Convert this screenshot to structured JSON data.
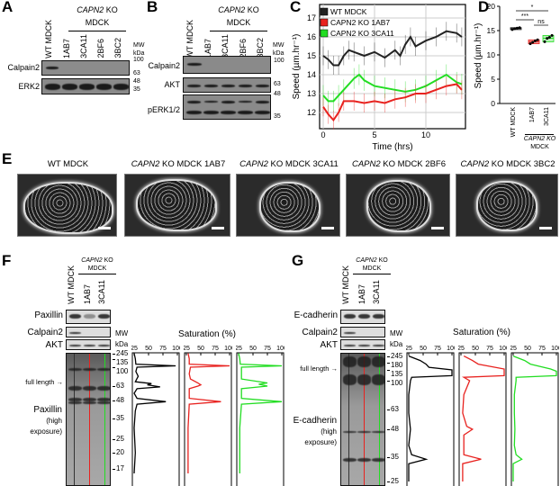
{
  "panel_labels": {
    "a": "A",
    "b": "B",
    "c": "C",
    "d": "D",
    "e": "E",
    "f": "F",
    "g": "G"
  },
  "common": {
    "ko_gene": "CAPN2",
    "ko": " KO",
    "mdck": "MDCK",
    "wt": "WT MDCK",
    "mw": "MW",
    "kda": "kDa"
  },
  "panel_a": {
    "lanes": [
      "WT MDCK",
      "1AB7",
      "3CA11",
      "2BF6",
      "3BC2"
    ],
    "blots": [
      "Calpain2",
      "ERK2"
    ],
    "mw_marks": [
      "100",
      "63",
      "48",
      "35"
    ]
  },
  "panel_b": {
    "lanes": [
      "WT MDCK",
      "1AB7",
      "3CA11",
      "2BF6",
      "3BC2"
    ],
    "blots": [
      "Calpain2",
      "AKT",
      "pERK1/2"
    ],
    "mw_marks": [
      "100",
      "63",
      "48",
      "35"
    ]
  },
  "chart_data": [
    {
      "panel": "C",
      "type": "line",
      "xlabel": "Time (hrs)",
      "ylabel": "Speed (µm.hr⁻¹)",
      "xlim": [
        0,
        13.8
      ],
      "ylim": [
        11.1,
        17.7
      ],
      "xticks": [
        "0",
        "5",
        "10"
      ],
      "yticks": [
        "12",
        "13",
        "14",
        "15",
        "16",
        "17"
      ],
      "grid": true,
      "legend": "top-left",
      "series": [
        {
          "name": "WT MDCK",
          "color": "#222222",
          "error": 0.5,
          "x": [
            0,
            0.5,
            1,
            1.5,
            2,
            2.5,
            3,
            4,
            5,
            6,
            7,
            7.5,
            8,
            8.5,
            9,
            10,
            11,
            12,
            13,
            13.5
          ],
          "y": [
            15.0,
            14.8,
            14.5,
            14.5,
            15.0,
            15.3,
            15.2,
            15.0,
            15.2,
            14.9,
            15.3,
            15.0,
            15.6,
            16.0,
            15.5,
            15.8,
            16.0,
            16.3,
            16.2,
            16.0
          ]
        },
        {
          "name": "CAPN2 KO 1AB7",
          "color": "#e8221f",
          "error": 0.5,
          "x": [
            0,
            0.5,
            1,
            1.5,
            2,
            3,
            4,
            5,
            6,
            7,
            8,
            9,
            10,
            11,
            12,
            13,
            13.5
          ],
          "y": [
            12.3,
            11.9,
            11.6,
            12.0,
            12.6,
            12.6,
            12.5,
            12.6,
            12.5,
            12.7,
            12.8,
            13.0,
            13.0,
            13.2,
            13.4,
            13.5,
            13.2
          ]
        },
        {
          "name": "CAPN2 KO 3CA11",
          "color": "#22dd22",
          "error": 0.55,
          "x": [
            0,
            0.5,
            1,
            1.5,
            2,
            3,
            3.5,
            4,
            5,
            6,
            7,
            8,
            9,
            10,
            11,
            12,
            13,
            13.5
          ],
          "y": [
            12.9,
            12.6,
            12.6,
            12.9,
            13.2,
            13.8,
            14.0,
            13.7,
            13.4,
            13.3,
            13.2,
            13.1,
            13.2,
            13.4,
            13.7,
            14.0,
            13.6,
            13.5
          ]
        }
      ]
    },
    {
      "panel": "D",
      "type": "box",
      "ylabel": "Speed (µm.hr⁻¹)",
      "ylim": [
        0,
        20
      ],
      "yticks": [
        "0",
        "5",
        "10",
        "15",
        "20"
      ],
      "categories": [
        "WT MDCK",
        "1AB7",
        "3CA11"
      ],
      "group_label": "CAPN2 KO",
      "group_sub": "MDCK",
      "colors": [
        "#222222",
        "#e8221f",
        "#22dd22"
      ],
      "points": [
        [
          15.2,
          15.4,
          15.5,
          15.6
        ],
        [
          12.3,
          12.6,
          12.9,
          13.1
        ],
        [
          12.7,
          13.4,
          13.6,
          14.0
        ]
      ],
      "significance": [
        {
          "pair": [
            "WT MDCK",
            "1AB7"
          ],
          "label": "***"
        },
        {
          "pair": [
            "WT MDCK",
            "3CA11"
          ],
          "label": "*"
        },
        {
          "pair": [
            "1AB7",
            "3CA11"
          ],
          "label": "ns"
        }
      ]
    },
    {
      "panel": "F",
      "type": "line",
      "xlabel": "Saturation (%)",
      "xticks": [
        "25",
        "50",
        "75",
        "100"
      ],
      "series": [
        {
          "color": "#000000",
          "points": [
            [
              250,
              25
            ],
            [
              140,
              27
            ],
            [
              112,
              28
            ],
            [
              105,
              97
            ],
            [
              100,
              30
            ],
            [
              90,
              28
            ],
            [
              80,
              32
            ],
            [
              70,
              27
            ],
            [
              67,
              55
            ],
            [
              65,
              48
            ],
            [
              62,
              70
            ],
            [
              60,
              30
            ],
            [
              55,
              25
            ],
            [
              50,
              30
            ],
            [
              47,
              80
            ],
            [
              45,
              30
            ],
            [
              40,
              27
            ],
            [
              30,
              25
            ],
            [
              20,
              27
            ],
            [
              15,
              25
            ]
          ]
        },
        {
          "color": "#e8221f",
          "points": [
            [
              250,
              28
            ],
            [
              140,
              30
            ],
            [
              112,
              30
            ],
            [
              105,
              100
            ],
            [
              100,
              32
            ],
            [
              85,
              30
            ],
            [
              75,
              32
            ],
            [
              68,
              45
            ],
            [
              65,
              50
            ],
            [
              63,
              45
            ],
            [
              60,
              30
            ],
            [
              50,
              30
            ],
            [
              47,
              85
            ],
            [
              45,
              30
            ],
            [
              30,
              28
            ],
            [
              15,
              28
            ]
          ]
        },
        {
          "color": "#22dd22",
          "points": [
            [
              250,
              25
            ],
            [
              140,
              27
            ],
            [
              112,
              28
            ],
            [
              105,
              100
            ],
            [
              100,
              30
            ],
            [
              85,
              30
            ],
            [
              75,
              30
            ],
            [
              68,
              75
            ],
            [
              66,
              60
            ],
            [
              63,
              75
            ],
            [
              60,
              30
            ],
            [
              50,
              30
            ],
            [
              47,
              100
            ],
            [
              45,
              30
            ],
            [
              30,
              27
            ],
            [
              15,
              27
            ]
          ]
        }
      ]
    },
    {
      "panel": "G",
      "type": "line",
      "xlabel": "Saturation (%)",
      "xticks": [
        "25",
        "50",
        "75",
        "100"
      ],
      "series": [
        {
          "color": "#000000",
          "points": [
            [
              250,
              25
            ],
            [
              200,
              45
            ],
            [
              170,
              55
            ],
            [
              150,
              60
            ],
            [
              135,
              100
            ],
            [
              115,
              100
            ],
            [
              110,
              30
            ],
            [
              100,
              28
            ],
            [
              80,
              25
            ],
            [
              60,
              25
            ],
            [
              48,
              28
            ],
            [
              40,
              25
            ],
            [
              36,
              30
            ],
            [
              34,
              55
            ],
            [
              32,
              25
            ],
            [
              25,
              25
            ]
          ]
        },
        {
          "color": "#e8221f",
          "points": [
            [
              250,
              30
            ],
            [
              200,
              45
            ],
            [
              170,
              55
            ],
            [
              140,
              100
            ],
            [
              115,
              100
            ],
            [
              110,
              30
            ],
            [
              100,
              40
            ],
            [
              80,
              30
            ],
            [
              60,
              28
            ],
            [
              50,
              35
            ],
            [
              48,
              45
            ],
            [
              45,
              30
            ],
            [
              36,
              30
            ],
            [
              34,
              60
            ],
            [
              32,
              28
            ],
            [
              25,
              28
            ]
          ]
        },
        {
          "color": "#22dd22",
          "points": [
            [
              250,
              25
            ],
            [
              200,
              45
            ],
            [
              170,
              55
            ],
            [
              140,
              90
            ],
            [
              130,
              100
            ],
            [
              115,
              100
            ],
            [
              110,
              30
            ],
            [
              100,
              30
            ],
            [
              80,
              27
            ],
            [
              60,
              27
            ],
            [
              48,
              28
            ],
            [
              40,
              27
            ],
            [
              36,
              30
            ],
            [
              34,
              40
            ],
            [
              32,
              25
            ],
            [
              25,
              25
            ]
          ]
        }
      ]
    }
  ],
  "panel_e": {
    "titles": [
      {
        "gene": "",
        "rest": "WT MDCK"
      },
      {
        "gene": "CAPN2",
        "rest": " KO MDCK 1AB7"
      },
      {
        "gene": "CAPN2",
        "rest": " KO MDCK 3CA11"
      },
      {
        "gene": "CAPN2",
        "rest": " KO MDCK 2BF6"
      },
      {
        "gene": "CAPN2",
        "rest": " KO MDCK 3BC2"
      }
    ]
  },
  "panel_f": {
    "lanes": [
      "WT MDCK",
      "1AB7",
      "3CA11"
    ],
    "blots": [
      "Paxillin",
      "Calpain2",
      "AKT"
    ],
    "full_length": "full length",
    "high": [
      "Paxillin",
      "(high",
      "exposure)"
    ],
    "mw_marks": [
      "245",
      "135",
      "100",
      "63",
      "48",
      "35",
      "25",
      "20",
      "17"
    ]
  },
  "panel_g": {
    "lanes": [
      "WT MDCK",
      "1AB7",
      "3CA11"
    ],
    "blots": [
      "E-cadherin",
      "Calpain2",
      "AKT"
    ],
    "full_length": "full length",
    "high": [
      "E-cadherin",
      "(high",
      "exposure)"
    ],
    "mw_marks": [
      "245",
      "180",
      "135",
      "100",
      "63",
      "48",
      "35",
      "25"
    ]
  }
}
